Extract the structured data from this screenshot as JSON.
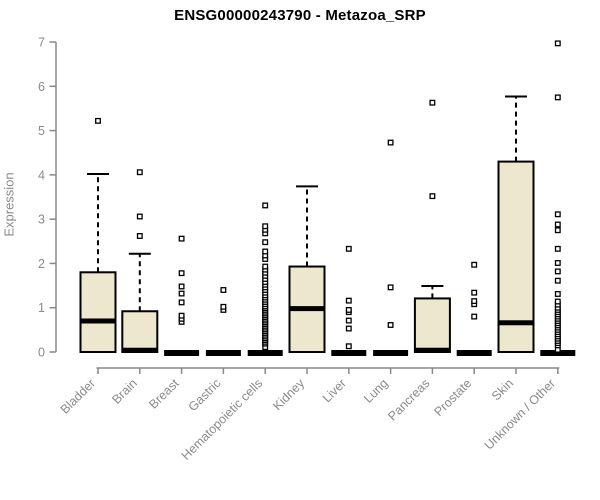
{
  "page": {
    "background": "#ffffff"
  },
  "chart_data": {
    "type": "boxplot",
    "title": "ENSG00000243790 - Metazoa_SRP",
    "ylabel": "Expression",
    "xlabel": "",
    "ylim": [
      0,
      7
    ],
    "yticks": [
      0,
      1,
      2,
      3,
      4,
      5,
      6,
      7
    ],
    "grid": false,
    "legend": false,
    "categories": [
      "Bladder",
      "Brain",
      "Breast",
      "Gastric",
      "Hematopoietic cells",
      "Kidney",
      "Liver",
      "Lung",
      "Pancreas",
      "Prostate",
      "Skin",
      "Unknown / Other"
    ],
    "boxes": [
      {
        "category": "Bladder",
        "q1": 0,
        "median": 0.7,
        "q3": 1.8,
        "whisker_low": 0,
        "whisker_high": 4.02,
        "outliers": [
          5.22
        ]
      },
      {
        "category": "Brain",
        "q1": 0,
        "median": 0.04,
        "q3": 0.92,
        "whisker_low": 0,
        "whisker_high": 2.22,
        "outliers": [
          2.62,
          3.06,
          4.06
        ]
      },
      {
        "category": "Breast",
        "q1": 0,
        "median": 0,
        "q3": 0,
        "whisker_low": 0,
        "whisker_high": 0,
        "outliers": [
          0.68,
          0.75,
          0.82,
          1.12,
          1.32,
          1.48,
          1.78,
          2.56
        ]
      },
      {
        "category": "Gastric",
        "q1": 0,
        "median": 0,
        "q3": 0,
        "whisker_low": 0,
        "whisker_high": 0,
        "outliers": [
          0.95,
          1.02,
          1.4
        ]
      },
      {
        "category": "Hematopoietic cells",
        "q1": 0,
        "median": 0,
        "q3": 0,
        "whisker_low": 0,
        "whisker_high": 0,
        "outliers": [
          0.11,
          0.19,
          0.23,
          0.27,
          0.31,
          0.35,
          0.39,
          0.43,
          0.47,
          0.51,
          0.55,
          0.59,
          0.63,
          0.67,
          0.71,
          0.75,
          0.79,
          0.83,
          0.87,
          0.91,
          0.95,
          0.99,
          1.03,
          1.08,
          1.13,
          1.18,
          1.23,
          1.28,
          1.34,
          1.4,
          1.46,
          1.52,
          1.58,
          1.65,
          1.72,
          1.79,
          1.86,
          1.93,
          2.1,
          2.18,
          2.27,
          2.48,
          2.68,
          2.76,
          2.84,
          3.31
        ]
      },
      {
        "category": "Kidney",
        "q1": 0,
        "median": 0.98,
        "q3": 1.93,
        "whisker_low": 0,
        "whisker_high": 3.74,
        "outliers": []
      },
      {
        "category": "Liver",
        "q1": 0,
        "median": 0,
        "q3": 0,
        "whisker_low": 0,
        "whisker_high": 0,
        "outliers": [
          0.13,
          0.53,
          0.71,
          0.9,
          0.95,
          1.16,
          2.33
        ]
      },
      {
        "category": "Lung",
        "q1": 0,
        "median": 0,
        "q3": 0,
        "whisker_low": 0,
        "whisker_high": 0,
        "outliers": [
          0.61,
          1.46,
          4.73
        ]
      },
      {
        "category": "Pancreas",
        "q1": 0,
        "median": 0.04,
        "q3": 1.21,
        "whisker_low": 0,
        "whisker_high": 1.49,
        "outliers": [
          3.52,
          5.63
        ]
      },
      {
        "category": "Prostate",
        "q1": 0,
        "median": 0,
        "q3": 0,
        "whisker_low": 0,
        "whisker_high": 0,
        "outliers": [
          0.8,
          1.08,
          1.15,
          1.34,
          1.97
        ]
      },
      {
        "category": "Skin",
        "q1": 0,
        "median": 0.66,
        "q3": 4.3,
        "whisker_low": 0,
        "whisker_high": 5.77,
        "outliers": []
      },
      {
        "category": "Unknown / Other",
        "q1": 0,
        "median": 0,
        "q3": 0,
        "whisker_low": 0,
        "whisker_high": 0,
        "outliers": [
          0.05,
          0.15,
          0.2,
          0.25,
          0.3,
          0.35,
          0.4,
          0.45,
          0.5,
          0.55,
          0.6,
          0.65,
          0.7,
          0.75,
          0.8,
          0.85,
          0.9,
          0.95,
          1.0,
          1.07,
          1.14,
          1.31,
          1.61,
          1.82,
          2.01,
          2.33,
          2.75,
          2.88,
          3.11,
          5.75,
          6.97
        ]
      }
    ],
    "colors": {
      "box_fill": "#EDE8CD",
      "box_border": "#000000",
      "median": "#000000",
      "whisker": "#000000",
      "outlier_fill": "#FFFFFF",
      "outlier_border": "#000000",
      "axis": "#888888",
      "tick_text": "#8A8A8A",
      "title_text": "#000000"
    }
  }
}
